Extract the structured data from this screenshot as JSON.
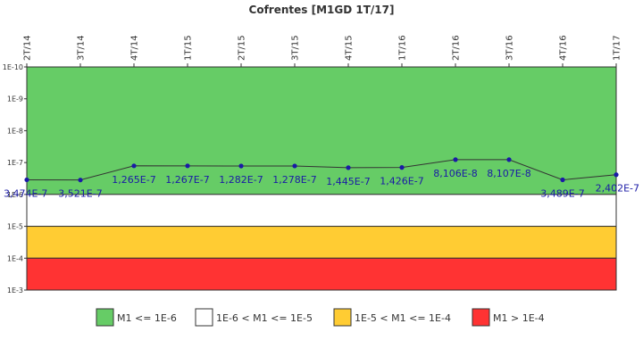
{
  "chart_data": {
    "type": "line",
    "title": "Cofrentes [M1GD 1T/17]",
    "xlabel": "",
    "ylabel": "",
    "y_scale": "log",
    "y_inverted": true,
    "ylim": [
      1e-10,
      0.001
    ],
    "y_tick_labels": [
      "1E-10",
      "1E-9",
      "1E-8",
      "1E-7",
      "1E-6",
      "1E-5",
      "1E-4",
      "1E-3"
    ],
    "y_tick_values": [
      1e-10,
      1e-09,
      1e-08,
      1e-07,
      1e-06,
      1e-05,
      0.0001,
      0.001
    ],
    "categories": [
      "2T/14",
      "3T/14",
      "4T/14",
      "1T/15",
      "2T/15",
      "3T/15",
      "4T/15",
      "1T/16",
      "2T/16",
      "3T/16",
      "4T/16",
      "1T/17"
    ],
    "series": [
      {
        "values": [
          3.474e-07,
          3.521e-07,
          1.265e-07,
          1.267e-07,
          1.282e-07,
          1.278e-07,
          1.445e-07,
          1.426e-07,
          8.106e-08,
          8.107e-08,
          3.489e-07,
          2.402e-07
        ],
        "labels": [
          "3,474E-7",
          "3,521E-7",
          "1,265E-7",
          "1,267E-7",
          "1,282E-7",
          "1,278E-7",
          "1,445E-7",
          "1,426E-7",
          "8,106E-8",
          "8,107E-8",
          "3,489E-7",
          "2,402E-7"
        ],
        "color": "#1a1aa6"
      }
    ],
    "bands": [
      {
        "from": 1e-10,
        "to": 1e-06,
        "color": "#66cc66",
        "legend": "M1 <= 1E-6"
      },
      {
        "from": 1e-06,
        "to": 1e-05,
        "color": "#ffffff",
        "legend": "1E-6 < M1 <= 1E-5"
      },
      {
        "from": 1e-05,
        "to": 0.0001,
        "color": "#ffcc33",
        "legend": "1E-5 < M1 <= 1E-4"
      },
      {
        "from": 0.0001,
        "to": 0.001,
        "color": "#ff3333",
        "legend": "M1 > 1E-4"
      }
    ],
    "legend_position": "bottom",
    "grid": false
  }
}
